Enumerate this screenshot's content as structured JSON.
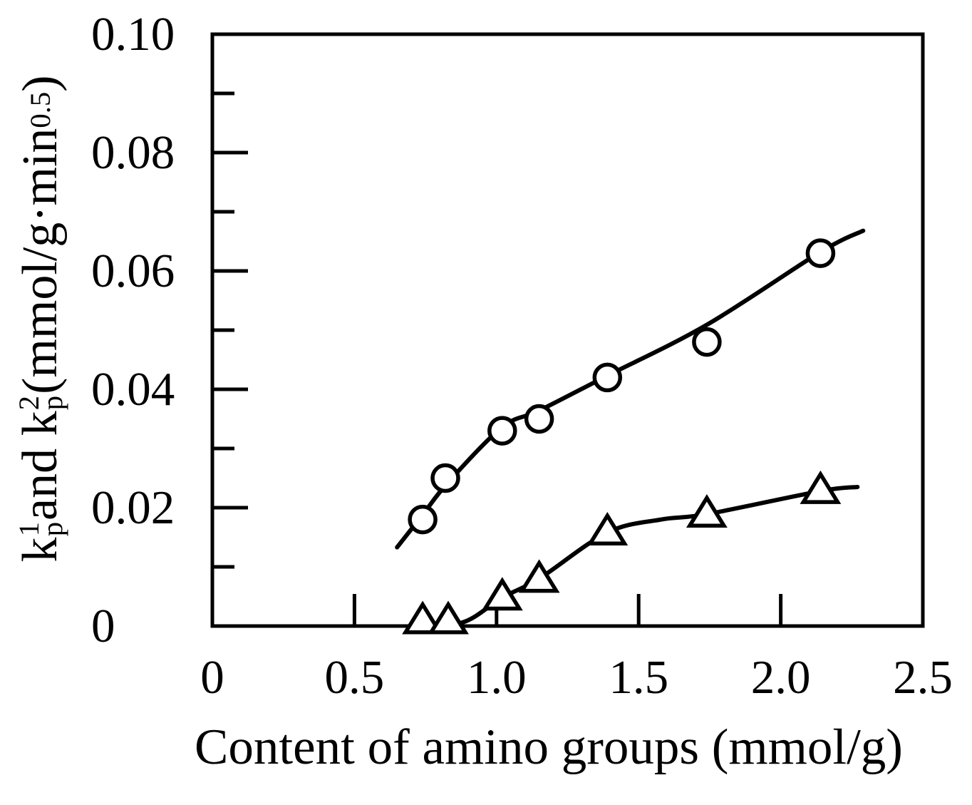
{
  "figure": {
    "ylabel_parts": [
      {
        "text": "k",
        "sup": "1",
        "sub": "p"
      },
      {
        "text": " and k",
        "sup": "2",
        "sub": "p"
      },
      {
        "text": " (mmol/g·min",
        "sup": "0.5"
      },
      {
        "text": ")"
      }
    ]
  },
  "chart_data": {
    "type": "scatter",
    "title": "",
    "xlabel": "Content of amino groups (mmol/g)",
    "ylabel": "k¹ₚ and k²ₚ (mmol/g·min⁰·⁵)",
    "xlim": [
      0,
      2.5
    ],
    "ylim": [
      0,
      0.1
    ],
    "grid": false,
    "legend": "none",
    "colors": {
      "foreground": "#000000",
      "background": "#ffffff"
    },
    "x_ticks": {
      "values": [
        0,
        0.5,
        1.0,
        1.5,
        2.0,
        2.5
      ],
      "labels": [
        "0",
        "0.5",
        "1.0",
        "1.5",
        "2.0",
        "2.5"
      ]
    },
    "y_ticks": {
      "values": [
        0,
        0.02,
        0.04,
        0.06,
        0.08,
        0.1
      ],
      "labels": [
        "0",
        "0.02",
        "0.04",
        "0.06",
        "0.08",
        "0.10"
      ],
      "minor": [
        0.01,
        0.03,
        0.05,
        0.07,
        0.09
      ]
    },
    "series": [
      {
        "name": "kp1",
        "marker": "circle",
        "x": [
          0.74,
          0.82,
          1.02,
          1.15,
          1.39,
          1.74,
          2.14
        ],
        "y": [
          0.018,
          0.025,
          0.033,
          0.035,
          0.042,
          0.048,
          0.063
        ],
        "fit_line": [
          [
            0.65,
            0.0133
          ],
          [
            0.74,
            0.0188
          ],
          [
            0.83,
            0.0243
          ],
          [
            1.02,
            0.0336
          ],
          [
            1.15,
            0.0364
          ],
          [
            1.39,
            0.0423
          ],
          [
            1.74,
            0.0509
          ],
          [
            2.14,
            0.0632
          ],
          [
            2.29,
            0.0668
          ]
        ]
      },
      {
        "name": "kp2",
        "marker": "triangle-up",
        "x": [
          0.74,
          0.83,
          1.02,
          1.15,
          1.39,
          1.74,
          2.14
        ],
        "y": [
          0.001,
          0.001,
          0.005,
          0.008,
          0.016,
          0.019,
          0.023
        ],
        "fit_line": [
          [
            0.72,
            0.0005
          ],
          [
            0.88,
            0.0006
          ],
          [
            1.02,
            0.0048
          ],
          [
            1.15,
            0.008
          ],
          [
            1.39,
            0.0158
          ],
          [
            1.58,
            0.018
          ],
          [
            1.74,
            0.0189
          ],
          [
            2.14,
            0.0228
          ],
          [
            2.27,
            0.0235
          ]
        ]
      }
    ]
  }
}
